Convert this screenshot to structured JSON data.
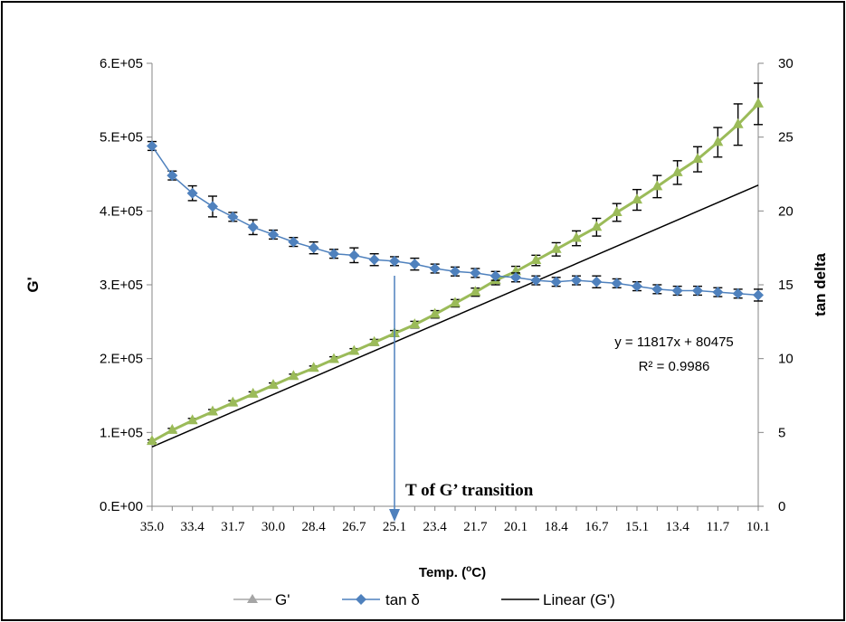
{
  "chart_data": {
    "type": "line",
    "x_axis": {
      "title": "Temp. (oC)",
      "title_main": "Temp. (",
      "title_sup": "o",
      "title_end": "C)",
      "reversed": true,
      "tick_labels": [
        "35.0",
        "33.4",
        "31.7",
        "30.0",
        "28.4",
        "26.7",
        "25.1",
        "23.4",
        "21.7",
        "20.1",
        "18.4",
        "16.7",
        "15.1",
        "13.4",
        "11.7",
        "10.1"
      ]
    },
    "y_left": {
      "title": "G'",
      "range": [
        0,
        600000
      ],
      "tick_values": [
        0,
        100000,
        200000,
        300000,
        400000,
        500000,
        600000
      ],
      "tick_labels": [
        "0.E+00",
        "1.E+05",
        "2.E+05",
        "3.E+05",
        "4.E+05",
        "5.E+05",
        "6.E+05"
      ]
    },
    "y_right": {
      "title": "tan delta",
      "range": [
        0,
        30
      ],
      "tick_values": [
        0,
        5,
        10,
        15,
        20,
        25,
        30
      ],
      "tick_labels": [
        "0",
        "5",
        "10",
        "15",
        "20",
        "25",
        "30"
      ]
    },
    "x": [
      35.0,
      34.2,
      33.4,
      32.6,
      31.7,
      30.9,
      30.0,
      29.2,
      28.4,
      27.6,
      26.7,
      25.9,
      25.1,
      24.3,
      23.4,
      22.6,
      21.7,
      20.9,
      20.1,
      19.3,
      18.4,
      17.6,
      16.7,
      15.9,
      15.1,
      14.3,
      13.4,
      12.6,
      11.7,
      10.9,
      10.1
    ],
    "series": [
      {
        "name": "G'",
        "axis": "left",
        "color": "#9BBB59",
        "marker": "triangle",
        "values": [
          88000,
          103000,
          116000,
          128000,
          140000,
          152000,
          164000,
          176000,
          187000,
          199000,
          210000,
          222000,
          234000,
          246000,
          260000,
          275000,
          290000,
          306000,
          318000,
          333000,
          348000,
          363000,
          378000,
          398000,
          415000,
          433000,
          452000,
          470000,
          493000,
          517000,
          545000
        ],
        "errors": [
          2000,
          2500,
          3000,
          3000,
          3000,
          3000,
          3000,
          3000,
          3000,
          3500,
          3500,
          4000,
          4000,
          4500,
          5000,
          5000,
          5500,
          6000,
          7000,
          7000,
          9000,
          10000,
          12000,
          12000,
          14000,
          15000,
          16000,
          17000,
          20000,
          28000,
          28000
        ]
      },
      {
        "name": "tan δ",
        "axis": "right",
        "color": "#4F81BD",
        "marker": "diamond",
        "values": [
          24.4,
          22.4,
          21.2,
          20.3,
          19.6,
          18.9,
          18.4,
          17.9,
          17.5,
          17.1,
          17.0,
          16.7,
          16.6,
          16.4,
          16.1,
          15.9,
          15.8,
          15.6,
          15.5,
          15.3,
          15.2,
          15.3,
          15.2,
          15.1,
          14.9,
          14.7,
          14.6,
          14.6,
          14.5,
          14.4,
          14.3
        ],
        "errors": [
          0.3,
          0.3,
          0.5,
          0.7,
          0.3,
          0.5,
          0.3,
          0.3,
          0.4,
          0.3,
          0.5,
          0.4,
          0.3,
          0.4,
          0.3,
          0.3,
          0.3,
          0.3,
          0.3,
          0.3,
          0.3,
          0.3,
          0.4,
          0.3,
          0.3,
          0.3,
          0.3,
          0.3,
          0.3,
          0.3,
          0.4
        ]
      }
    ],
    "trendline": {
      "name": "Linear (G')",
      "series": "G'",
      "color": "#000000",
      "slope": 11817,
      "intercept": 80475,
      "equation_label": "y = 11817x + 80475",
      "r2_label": "R² = 0.9986"
    },
    "annotation": {
      "text": "T of G’ transition",
      "at_x": 25.1,
      "color": "#4F81BD"
    },
    "legend": {
      "position": "bottom",
      "items": [
        {
          "label": "G'",
          "color": "#A5A5A5",
          "marker": "triangle"
        },
        {
          "label": "tan δ",
          "color": "#4F81BD",
          "marker": "diamond"
        },
        {
          "label": "Linear (G')",
          "color": "#000000",
          "marker": "none"
        }
      ]
    },
    "grid": false
  }
}
